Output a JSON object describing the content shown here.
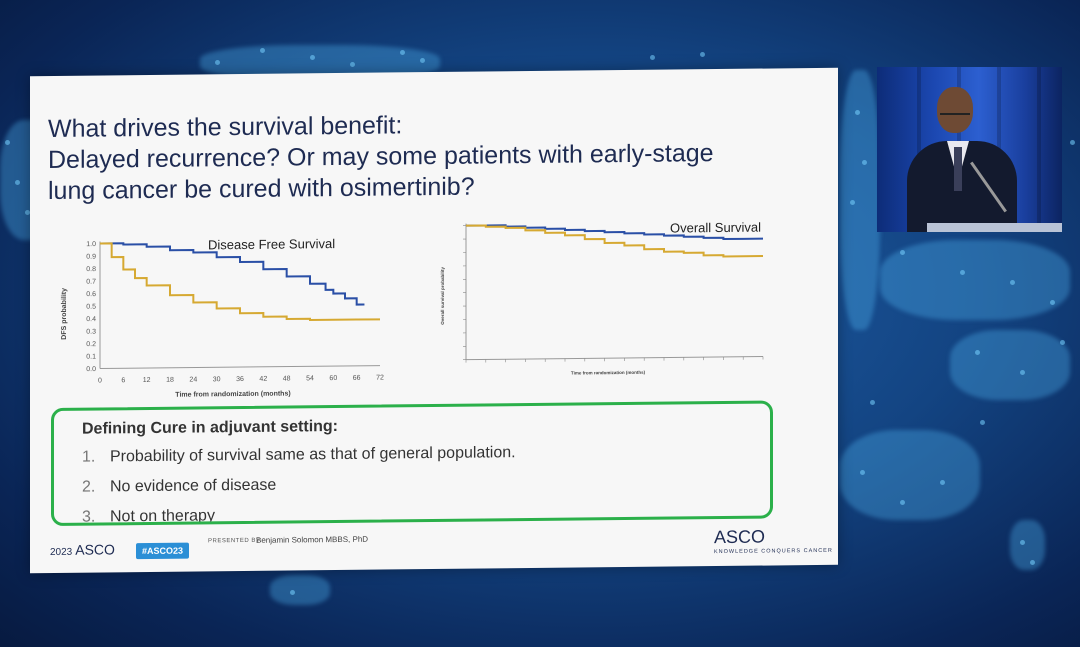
{
  "slide": {
    "title_lines": [
      "What drives the survival benefit:",
      "Delayed recurrence? Or may some patients with early-stage",
      "lung cancer be cured with osimertinib?"
    ]
  },
  "dfs_chart": {
    "title": "Disease Free Survival",
    "ylabel": "DFS probability",
    "xlabel": "Time from randomization (months)",
    "y_ticks": [
      "0.0",
      "0.1",
      "0.2",
      "0.3",
      "0.4",
      "0.5",
      "0.6",
      "0.7",
      "0.8",
      "0.9",
      "1.0"
    ],
    "x_ticks": [
      "0",
      "6",
      "12",
      "18",
      "24",
      "30",
      "36",
      "42",
      "48",
      "54",
      "60",
      "66",
      "72"
    ]
  },
  "os_chart": {
    "title": "Overall Survival",
    "ylabel": "Overall survival probability",
    "xlabel": "Time from randomization (months)"
  },
  "chart_data": [
    {
      "type": "line",
      "title": "Disease Free Survival",
      "ylabel": "DFS probability",
      "xlabel": "Time from randomization (months)",
      "xlim": [
        0,
        72
      ],
      "ylim": [
        0,
        1
      ],
      "series": [
        {
          "color": "#2a4fa6",
          "x": [
            0,
            6,
            12,
            18,
            24,
            30,
            36,
            42,
            48,
            54,
            58,
            60,
            63,
            66,
            68
          ],
          "values": [
            1.0,
            0.99,
            0.97,
            0.94,
            0.92,
            0.88,
            0.84,
            0.78,
            0.72,
            0.66,
            0.61,
            0.58,
            0.54,
            0.49,
            0.49
          ]
        },
        {
          "color": "#d6a932",
          "x": [
            0,
            3,
            6,
            9,
            12,
            18,
            24,
            30,
            36,
            42,
            48,
            54,
            60,
            66,
            72
          ],
          "values": [
            1.0,
            0.89,
            0.79,
            0.72,
            0.66,
            0.58,
            0.52,
            0.47,
            0.43,
            0.4,
            0.38,
            0.37,
            0.37,
            0.37,
            0.37
          ]
        }
      ]
    },
    {
      "type": "line",
      "title": "Overall Survival",
      "ylabel": "Overall survival probability",
      "xlabel": "Time from randomization (months)",
      "xlim": [
        0,
        90
      ],
      "ylim": [
        0,
        1
      ],
      "series": [
        {
          "color": "#2a4fa6",
          "x": [
            0,
            6,
            12,
            18,
            24,
            30,
            36,
            42,
            48,
            54,
            60,
            66,
            72,
            78,
            84,
            90
          ],
          "values": [
            1.0,
            1.0,
            0.99,
            0.98,
            0.97,
            0.96,
            0.95,
            0.94,
            0.93,
            0.92,
            0.91,
            0.9,
            0.89,
            0.88,
            0.88,
            0.88
          ]
        },
        {
          "color": "#d6a932",
          "x": [
            0,
            6,
            12,
            18,
            24,
            30,
            36,
            42,
            48,
            54,
            60,
            66,
            72,
            78,
            84,
            90
          ],
          "values": [
            1.0,
            0.99,
            0.98,
            0.96,
            0.94,
            0.92,
            0.89,
            0.86,
            0.84,
            0.81,
            0.79,
            0.78,
            0.76,
            0.75,
            0.75,
            0.75
          ]
        }
      ]
    }
  ],
  "cure_box": {
    "heading": "Defining Cure in adjuvant setting:",
    "items": [
      {
        "num": "1.",
        "text": "Probability of survival same as that of general population."
      },
      {
        "num": "2.",
        "text": "No evidence of disease"
      },
      {
        "num": "3.",
        "text": "Not on therapy"
      }
    ]
  },
  "footer": {
    "year": "2023",
    "asco_small": "ASCO",
    "hashtag": "#ASCO23",
    "presented_by": "PRESENTED BY:",
    "presenter": "Benjamin Solomon MBBS, PhD",
    "asco_logo": "ASCO",
    "tagline": "KNOWLEDGE CONQUERS CANCER"
  },
  "colors": {
    "accent_green": "#2bb04a",
    "title_navy": "#1e2b52",
    "series_blue": "#2a4fa6",
    "series_gold": "#d6a932"
  }
}
